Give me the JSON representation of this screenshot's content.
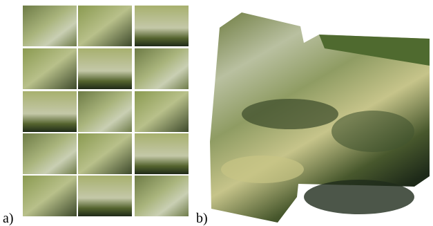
{
  "labels": {
    "a": "a)",
    "b": "b)"
  }
}
